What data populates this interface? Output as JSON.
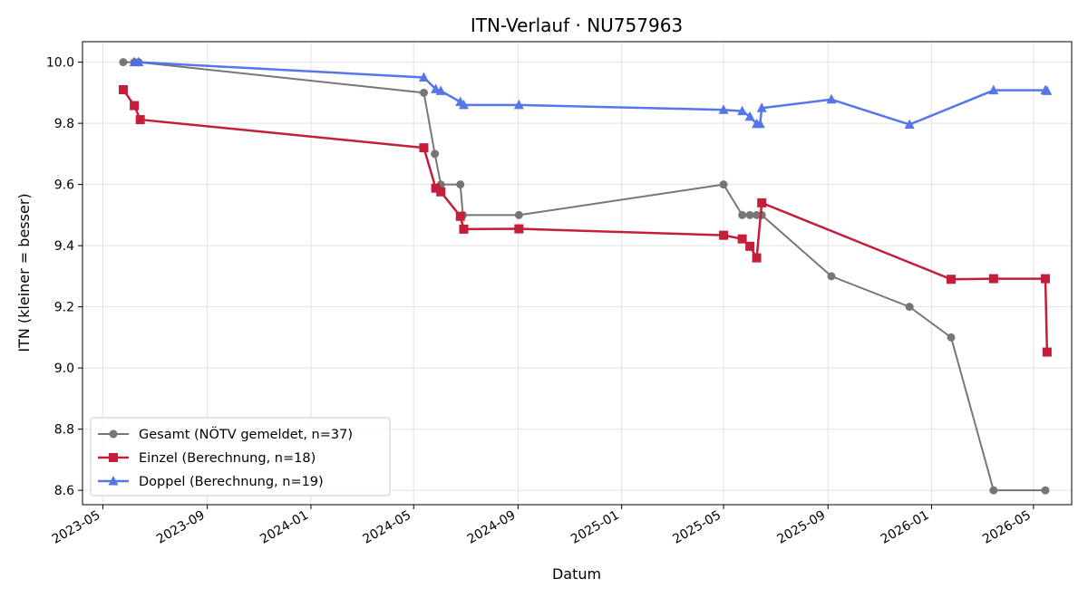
{
  "chart_data": {
    "type": "line",
    "title": "ITN-Verlauf · NU757963",
    "xlabel": "Datum",
    "ylabel": "ITN  (kleiner = besser)",
    "xlim": [
      "2023-04-07",
      "2026-06-15"
    ],
    "ylim": [
      8.553,
      10.067
    ],
    "x_ticks": [
      "2023-05",
      "2023-09",
      "2024-01",
      "2024-05",
      "2024-09",
      "2025-01",
      "2025-05",
      "2025-09",
      "2026-01",
      "2026-05"
    ],
    "y_ticks": [
      "10.0",
      "9.8",
      "9.6",
      "9.4",
      "9.2",
      "9.0",
      "8.8",
      "8.6"
    ],
    "grid": true,
    "legend_position": "lower-left",
    "series": [
      {
        "name": "Gesamt (NÖTV gemeldet, n=37)",
        "color": "#555555",
        "marker": "circle",
        "points": [
          [
            "2023-05-25",
            10.0
          ],
          [
            "2023-06-07",
            10.0
          ],
          [
            "2023-06-12",
            10.0
          ],
          [
            "2024-05-13",
            9.9
          ],
          [
            "2024-05-26",
            9.7
          ],
          [
            "2024-06-02",
            9.6
          ],
          [
            "2024-06-25",
            9.6
          ],
          [
            "2024-06-28",
            9.5
          ],
          [
            "2024-09-02",
            9.5
          ],
          [
            "2025-05-01",
            9.6
          ],
          [
            "2025-05-23",
            9.5
          ],
          [
            "2025-06-01",
            9.5
          ],
          [
            "2025-06-09",
            9.5
          ],
          [
            "2025-06-15",
            9.5
          ],
          [
            "2025-09-05",
            9.3
          ],
          [
            "2025-12-06",
            9.2
          ],
          [
            "2026-01-24",
            9.1
          ],
          [
            "2026-03-15",
            8.6
          ],
          [
            "2026-05-15",
            8.6
          ]
        ]
      },
      {
        "name": "Einzel (Berechnung, n=18)",
        "color": "#c41e3a",
        "marker": "square",
        "points": [
          [
            "2023-05-25",
            9.91
          ],
          [
            "2023-06-07",
            9.858
          ],
          [
            "2023-06-14",
            9.812
          ],
          [
            "2024-05-13",
            9.72
          ],
          [
            "2024-05-27",
            9.588
          ],
          [
            "2024-06-02",
            9.576
          ],
          [
            "2024-06-25",
            9.496
          ],
          [
            "2024-06-29",
            9.454
          ],
          [
            "2024-09-02",
            9.455
          ],
          [
            "2025-05-01",
            9.434
          ],
          [
            "2025-05-23",
            9.422
          ],
          [
            "2025-06-01",
            9.398
          ],
          [
            "2025-06-09",
            9.36
          ],
          [
            "2025-06-15",
            9.54
          ],
          [
            "2026-01-24",
            9.29
          ],
          [
            "2026-03-15",
            9.292
          ],
          [
            "2026-05-15",
            9.292
          ],
          [
            "2026-05-17",
            9.052
          ]
        ]
      },
      {
        "name": "Doppel (Berechnung, n=19)",
        "color": "#4f6fe6",
        "marker": "triangle",
        "points": [
          [
            "2023-06-07",
            10.0
          ],
          [
            "2023-06-12",
            10.0
          ],
          [
            "2024-05-13",
            9.95
          ],
          [
            "2024-05-27",
            9.912
          ],
          [
            "2024-06-02",
            9.906
          ],
          [
            "2024-06-25",
            9.87
          ],
          [
            "2024-06-29",
            9.86
          ],
          [
            "2024-09-02",
            9.86
          ],
          [
            "2025-05-01",
            9.844
          ],
          [
            "2025-05-23",
            9.84
          ],
          [
            "2025-06-01",
            9.822
          ],
          [
            "2025-06-09",
            9.798
          ],
          [
            "2025-06-13",
            9.798
          ],
          [
            "2025-06-15",
            9.85
          ],
          [
            "2025-09-05",
            9.878
          ],
          [
            "2025-12-06",
            9.796
          ],
          [
            "2026-03-15",
            9.908
          ],
          [
            "2026-05-15",
            9.908
          ],
          [
            "2026-05-17",
            9.906
          ]
        ]
      }
    ]
  }
}
